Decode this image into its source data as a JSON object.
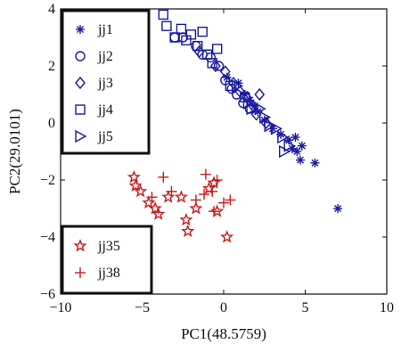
{
  "chart_data": {
    "type": "scatter",
    "title": "",
    "xlabel": "PC1(48.5759)",
    "ylabel": "PC2(29.0101)",
    "xlim": [
      -10,
      10
    ],
    "ylim": [
      -6,
      4
    ],
    "xticks": [
      "−10",
      "−5",
      "0",
      "5",
      "10"
    ],
    "xtick_values": [
      -10,
      -5,
      0,
      5,
      10
    ],
    "yticks": [
      "4",
      "2",
      "0",
      "−2",
      "−4",
      "−6"
    ],
    "ytick_values": [
      4,
      2,
      0,
      -2,
      -4,
      -6
    ],
    "grid": false,
    "legends": [
      {
        "placement": "top-left",
        "entries": [
          "jj1",
          "jj2",
          "jj3",
          "jj4",
          "jj5"
        ]
      },
      {
        "placement": "bottom-left",
        "entries": [
          "jj35",
          "jj38"
        ]
      }
    ],
    "series": [
      {
        "name": "jj1",
        "marker": "asterisk",
        "color": "#1a1aa0",
        "points": [
          [
            0.2,
            1.6
          ],
          [
            0.9,
            1.4
          ],
          [
            1.3,
            1.0
          ],
          [
            1.6,
            0.8
          ],
          [
            1.9,
            0.6
          ],
          [
            2.1,
            0.4
          ],
          [
            2.5,
            0.1
          ],
          [
            3.0,
            -0.2
          ],
          [
            3.5,
            -0.4
          ],
          [
            4.0,
            -0.6
          ],
          [
            4.4,
            -0.5
          ],
          [
            4.8,
            -0.8
          ],
          [
            4.5,
            -1.0
          ],
          [
            4.7,
            -1.3
          ],
          [
            5.6,
            -1.4
          ],
          [
            7.0,
            -3.0
          ],
          [
            4.2,
            -0.9
          ]
        ]
      },
      {
        "name": "jj2",
        "marker": "circle",
        "color": "#1a1aa0",
        "points": [
          [
            -3.0,
            3.0
          ],
          [
            -2.5,
            3.0
          ],
          [
            -1.7,
            2.7
          ],
          [
            -1.3,
            2.4
          ],
          [
            -0.8,
            2.3
          ],
          [
            -0.3,
            2.0
          ],
          [
            0.1,
            1.5
          ],
          [
            0.5,
            1.2
          ],
          [
            0.8,
            1.0
          ],
          [
            1.2,
            0.7
          ],
          [
            1.6,
            0.5
          ]
        ]
      },
      {
        "name": "jj3",
        "marker": "diamond",
        "color": "#1a1aa0",
        "points": [
          [
            -1.5,
            2.5
          ],
          [
            -0.5,
            2.0
          ],
          [
            0.1,
            1.8
          ],
          [
            0.6,
            1.4
          ],
          [
            1.0,
            1.1
          ],
          [
            1.4,
            0.9
          ],
          [
            1.8,
            0.6
          ],
          [
            2.2,
            1.0
          ],
          [
            2.0,
            0.3
          ],
          [
            2.6,
            0.0
          ]
        ]
      },
      {
        "name": "jj4",
        "marker": "square",
        "color": "#1a1aa0",
        "points": [
          [
            -3.7,
            3.8
          ],
          [
            -3.5,
            3.4
          ],
          [
            -3.0,
            3.0
          ],
          [
            -2.6,
            3.3
          ],
          [
            -2.3,
            2.9
          ],
          [
            -2.0,
            3.1
          ],
          [
            -1.6,
            2.7
          ],
          [
            -1.3,
            3.2
          ],
          [
            -1.0,
            2.4
          ],
          [
            -0.7,
            2.1
          ],
          [
            -0.4,
            2.6
          ],
          [
            0.4,
            1.3
          ],
          [
            1.3,
            0.9
          ]
        ]
      },
      {
        "name": "jj5",
        "marker": "triangle-right",
        "color": "#1a1aa0",
        "points": [
          [
            0.8,
            1.3
          ],
          [
            1.5,
            0.7
          ],
          [
            1.7,
            0.5
          ],
          [
            2.2,
            0.5
          ],
          [
            2.5,
            0.2
          ],
          [
            2.8,
            -0.1
          ],
          [
            3.2,
            -0.2
          ],
          [
            3.6,
            -0.5
          ],
          [
            4.0,
            -0.8
          ],
          [
            3.7,
            -1.0
          ]
        ]
      },
      {
        "name": "jj35",
        "marker": "star",
        "color": "#cc1a1a",
        "points": [
          [
            -5.5,
            -1.9
          ],
          [
            -5.4,
            -2.2
          ],
          [
            -5.1,
            -2.4
          ],
          [
            -4.6,
            -2.8
          ],
          [
            -4.2,
            -3.0
          ],
          [
            -4.0,
            -3.2
          ],
          [
            -3.4,
            -2.6
          ],
          [
            -2.6,
            -2.6
          ],
          [
            -2.3,
            -3.4
          ],
          [
            -1.7,
            -3.0
          ],
          [
            -0.9,
            -2.3
          ],
          [
            -0.6,
            -2.1
          ],
          [
            -0.4,
            -3.1
          ],
          [
            -2.2,
            -3.8
          ],
          [
            0.2,
            -4.0
          ]
        ]
      },
      {
        "name": "jj38",
        "marker": "plus",
        "color": "#cc1a1a",
        "points": [
          [
            -4.4,
            -2.6
          ],
          [
            -3.7,
            -1.9
          ],
          [
            -3.2,
            -2.4
          ],
          [
            -1.7,
            -2.7
          ],
          [
            -1.1,
            -1.8
          ],
          [
            -1.2,
            -2.5
          ],
          [
            -0.7,
            -2.4
          ],
          [
            -0.4,
            -2.0
          ],
          [
            0.0,
            -2.8
          ],
          [
            0.4,
            -2.7
          ],
          [
            -0.6,
            -3.1
          ]
        ]
      }
    ]
  }
}
